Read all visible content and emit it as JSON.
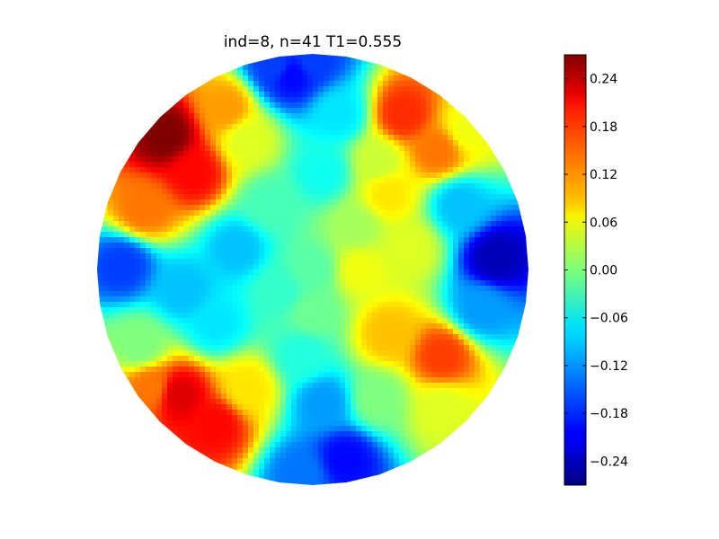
{
  "chart_data": {
    "type": "heatmap",
    "title": "ind=8, n=41  T1=0.555",
    "xlabel": "",
    "ylabel": "",
    "domain_shape": "disk",
    "colormap": "jet",
    "grid": false,
    "colorbar": {
      "position": "right",
      "vmin": -0.27,
      "vmax": 0.27,
      "ticks": [
        0.24,
        0.18,
        0.12,
        0.06,
        0.0,
        -0.06,
        -0.12,
        -0.18,
        -0.24
      ],
      "tick_labels": [
        "0.24",
        "0.18",
        "0.12",
        "0.06",
        "0.00",
        "−0.06",
        "−0.12",
        "−0.18",
        "−0.24"
      ]
    },
    "field_points": [
      {
        "x": -0.68,
        "y": 0.62,
        "value": 0.27
      },
      {
        "x": -0.55,
        "y": 0.45,
        "value": 0.2
      },
      {
        "x": -0.78,
        "y": 0.28,
        "value": 0.14
      },
      {
        "x": -0.3,
        "y": 0.6,
        "value": 0.05
      },
      {
        "x": -0.1,
        "y": 0.9,
        "value": -0.2
      },
      {
        "x": -0.17,
        "y": 0.94,
        "value": -0.17
      },
      {
        "x": 0.12,
        "y": 0.72,
        "value": -0.08
      },
      {
        "x": 0.05,
        "y": 0.45,
        "value": -0.06
      },
      {
        "x": 0.42,
        "y": 0.72,
        "value": 0.18
      },
      {
        "x": 0.58,
        "y": 0.55,
        "value": 0.14
      },
      {
        "x": 0.35,
        "y": 0.35,
        "value": 0.08
      },
      {
        "x": 0.85,
        "y": 0.05,
        "value": -0.24
      },
      {
        "x": 0.68,
        "y": 0.3,
        "value": -0.1
      },
      {
        "x": 0.78,
        "y": -0.18,
        "value": -0.12
      },
      {
        "x": 0.6,
        "y": -0.4,
        "value": 0.17
      },
      {
        "x": 0.35,
        "y": -0.3,
        "value": 0.1
      },
      {
        "x": 0.22,
        "y": 0.0,
        "value": 0.06
      },
      {
        "x": 0.0,
        "y": 0.0,
        "value": -0.02
      },
      {
        "x": -0.35,
        "y": 0.1,
        "value": -0.1
      },
      {
        "x": -0.88,
        "y": 0.02,
        "value": -0.17
      },
      {
        "x": -0.6,
        "y": -0.1,
        "value": -0.1
      },
      {
        "x": -0.45,
        "y": -0.25,
        "value": -0.08
      },
      {
        "x": -0.62,
        "y": -0.58,
        "value": 0.22
      },
      {
        "x": -0.45,
        "y": -0.72,
        "value": 0.2
      },
      {
        "x": -0.3,
        "y": -0.55,
        "value": 0.08
      },
      {
        "x": 0.15,
        "y": -0.88,
        "value": -0.2
      },
      {
        "x": 0.05,
        "y": -0.62,
        "value": -0.12
      },
      {
        "x": -0.05,
        "y": -0.4,
        "value": -0.05
      },
      {
        "x": 0.3,
        "y": -0.6,
        "value": 0.0
      },
      {
        "x": 0.2,
        "y": 0.2,
        "value": 0.02
      },
      {
        "x": -0.2,
        "y": 0.3,
        "value": -0.03
      },
      {
        "x": 0.45,
        "y": 0.1,
        "value": 0.05
      },
      {
        "x": 0.0,
        "y": -0.2,
        "value": -0.01
      },
      {
        "x": -0.15,
        "y": -0.1,
        "value": -0.04
      },
      {
        "x": 0.3,
        "y": 0.5,
        "value": 0.04
      },
      {
        "x": -0.4,
        "y": 0.75,
        "value": 0.12
      },
      {
        "x": 0.72,
        "y": 0.65,
        "value": 0.06
      },
      {
        "x": 0.6,
        "y": -0.65,
        "value": 0.05
      },
      {
        "x": -0.8,
        "y": -0.35,
        "value": 0.0
      },
      {
        "x": -0.75,
        "y": -0.55,
        "value": 0.14
      },
      {
        "x": 0.0,
        "y": 0.97,
        "value": -0.17
      },
      {
        "x": -0.05,
        "y": -0.95,
        "value": -0.14
      }
    ]
  }
}
